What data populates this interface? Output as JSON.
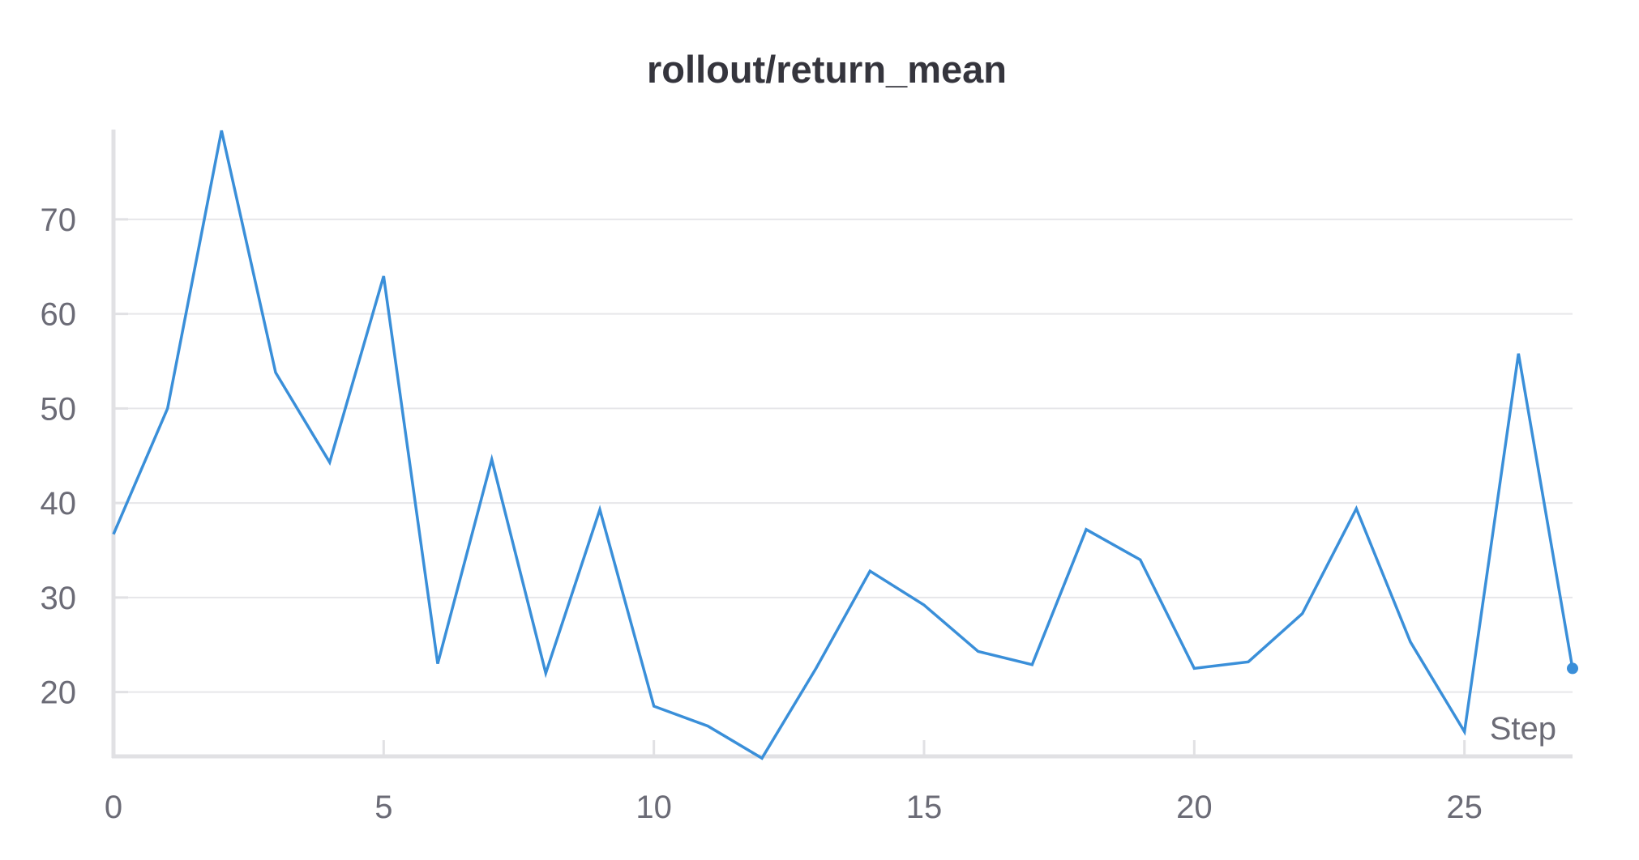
{
  "chart_data": {
    "type": "line",
    "title": "rollout/return_mean",
    "xlabel": "Step",
    "ylabel": "",
    "xlim": [
      0,
      27
    ],
    "ylim": [
      13.2,
      79.5
    ],
    "x_ticks": [
      0,
      5,
      10,
      15,
      20,
      25
    ],
    "y_ticks": [
      20,
      30,
      40,
      50,
      60,
      70
    ],
    "grid": true,
    "series_color": "#3a8fd9",
    "series": [
      {
        "x": [
          0,
          1,
          2,
          3,
          4,
          5,
          6,
          7,
          8,
          9,
          10,
          11,
          12,
          13,
          14,
          15,
          16,
          17,
          18,
          19,
          20,
          21,
          22,
          23,
          24,
          25,
          26,
          27
        ],
        "values": [
          36.7,
          50.0,
          79.4,
          53.8,
          44.3,
          64.0,
          23.0,
          44.6,
          22.0,
          39.3,
          18.5,
          16.4,
          13.0,
          22.5,
          32.8,
          29.2,
          24.3,
          22.9,
          37.2,
          34.0,
          22.5,
          23.2,
          28.3,
          39.4,
          25.3,
          15.8,
          55.8,
          22.5
        ]
      }
    ]
  }
}
